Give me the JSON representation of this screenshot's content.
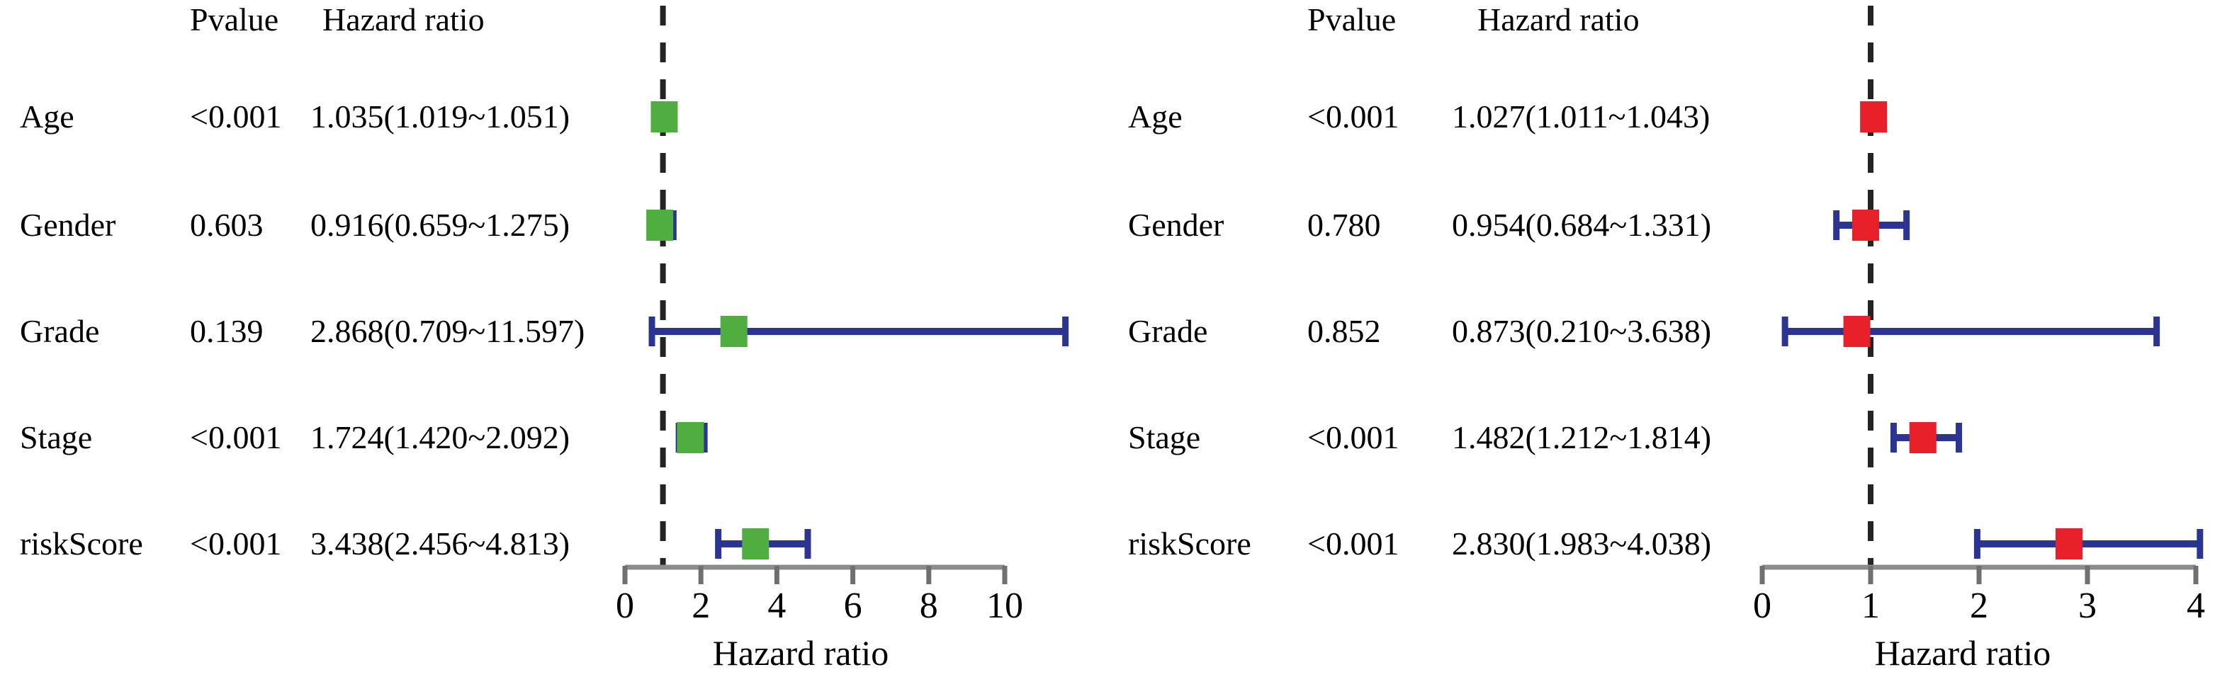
{
  "figure_colors": {
    "background": "#ffffff",
    "axis_line": "#8c8c8c",
    "tick": "#6f6f6f",
    "reference_dash": "#242424",
    "text": "#000000",
    "ci_bar": "#2b3490"
  },
  "chart_data": [
    {
      "type": "forest",
      "panel": "left",
      "col_headers": [
        "Pvalue",
        "Hazard ratio"
      ],
      "xlabel": "Hazard ratio",
      "xticks": [
        0,
        2,
        4,
        6,
        8,
        10
      ],
      "xlim": [
        0,
        11.8
      ],
      "reference_line": 1,
      "marker_color": "#4fae3f",
      "ci_color": "#2b3490",
      "rows": [
        {
          "label": "Age",
          "pvalue": "<0.001",
          "hr_ci_text": "1.035(1.019~1.051)",
          "hr": 1.035,
          "ci_low": 1.019,
          "ci_high": 1.051
        },
        {
          "label": "Gender",
          "pvalue": "0.603",
          "hr_ci_text": "0.916(0.659~1.275)",
          "hr": 0.916,
          "ci_low": 0.659,
          "ci_high": 1.275
        },
        {
          "label": "Grade",
          "pvalue": "0.139",
          "hr_ci_text": "2.868(0.709~11.597)",
          "hr": 2.868,
          "ci_low": 0.709,
          "ci_high": 11.597
        },
        {
          "label": "Stage",
          "pvalue": "<0.001",
          "hr_ci_text": "1.724(1.420~2.092)",
          "hr": 1.724,
          "ci_low": 1.42,
          "ci_high": 2.092
        },
        {
          "label": "riskScore",
          "pvalue": "<0.001",
          "hr_ci_text": "3.438(2.456~4.813)",
          "hr": 3.438,
          "ci_low": 2.456,
          "ci_high": 4.813
        }
      ]
    },
    {
      "type": "forest",
      "panel": "right",
      "col_headers": [
        "Pvalue",
        "Hazard ratio"
      ],
      "xlabel": "Hazard ratio",
      "xticks": [
        0,
        1,
        2,
        3,
        4
      ],
      "xlim": [
        0,
        4.1
      ],
      "reference_line": 1,
      "marker_color": "#e8202a",
      "ci_color": "#2b3490",
      "rows": [
        {
          "label": "Age",
          "pvalue": "<0.001",
          "hr_ci_text": "1.027(1.011~1.043)",
          "hr": 1.027,
          "ci_low": 1.011,
          "ci_high": 1.043
        },
        {
          "label": "Gender",
          "pvalue": "0.780",
          "hr_ci_text": "0.954(0.684~1.331)",
          "hr": 0.954,
          "ci_low": 0.684,
          "ci_high": 1.331
        },
        {
          "label": "Grade",
          "pvalue": "0.852",
          "hr_ci_text": "0.873(0.210~3.638)",
          "hr": 0.873,
          "ci_low": 0.21,
          "ci_high": 3.638
        },
        {
          "label": "Stage",
          "pvalue": "<0.001",
          "hr_ci_text": "1.482(1.212~1.814)",
          "hr": 1.482,
          "ci_low": 1.212,
          "ci_high": 1.814
        },
        {
          "label": "riskScore",
          "pvalue": "<0.001",
          "hr_ci_text": "2.830(1.983~4.038)",
          "hr": 2.83,
          "ci_low": 1.983,
          "ci_high": 4.038
        }
      ]
    }
  ]
}
